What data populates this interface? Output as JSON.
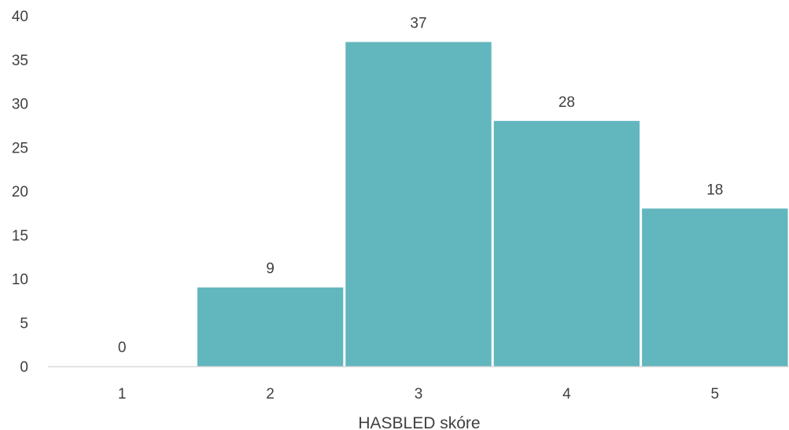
{
  "chart_data": {
    "type": "bar",
    "categories": [
      "1",
      "2",
      "3",
      "4",
      "5"
    ],
    "values": [
      0,
      9,
      37,
      28,
      18
    ],
    "data_labels": [
      "0",
      "9",
      "37",
      "28",
      "18"
    ],
    "xlabel": "HASBLED skóre",
    "ylabel": "",
    "ylim": [
      0,
      40
    ],
    "yticks": [
      "0",
      "5",
      "10",
      "15",
      "20",
      "25",
      "30",
      "35",
      "40"
    ],
    "grid": false,
    "legend": "none",
    "colors": {
      "bar": "#62b6bd",
      "axis": "#d9d9d9",
      "text": "#404040"
    }
  }
}
